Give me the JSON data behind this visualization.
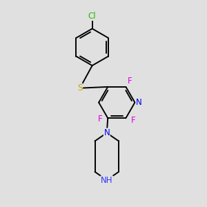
{
  "background_color": "#e0e0e0",
  "bond_color": "#000000",
  "Cl_color": "#22bb00",
  "S_color": "#bbaa00",
  "F_color": "#dd00dd",
  "N_color": "#0000ee",
  "NH_color": "#3333ff",
  "lw": 1.4,
  "fs": 8.5,
  "xlim": [
    0,
    10
  ],
  "ylim": [
    0,
    10
  ]
}
